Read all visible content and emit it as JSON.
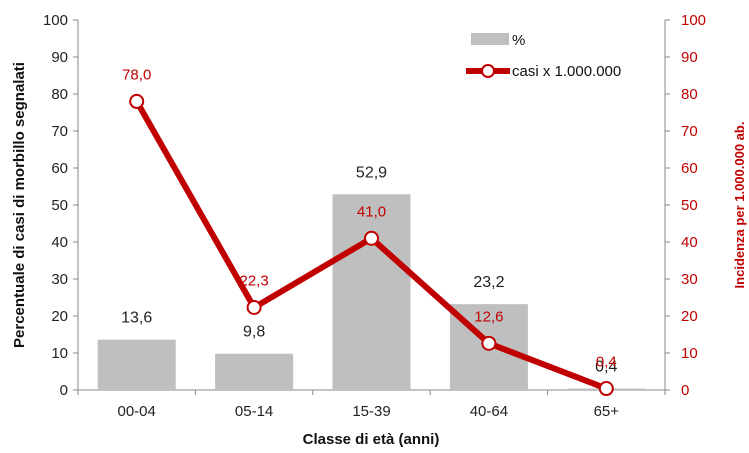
{
  "chart_data": {
    "type": "bar",
    "categories": [
      "00-04",
      "05-14",
      "15-39",
      "40-64",
      "65+"
    ],
    "series": [
      {
        "name": "%",
        "type": "bar",
        "axis": "left",
        "color": "#bfbfbf",
        "values": [
          13.6,
          9.8,
          52.9,
          23.2,
          0.4
        ],
        "labels": [
          "13,6",
          "9,8",
          "52,9",
          "23,2",
          "0,4"
        ]
      },
      {
        "name": "casi x 1.000.000",
        "type": "line",
        "axis": "right",
        "color": "#c00000",
        "values": [
          78.0,
          22.3,
          41.0,
          12.6,
          0.4
        ],
        "labels": [
          "78,0",
          "22,3",
          "41,0",
          "12,6",
          "0,4"
        ]
      }
    ],
    "xlabel": "Classe di età (anni)",
    "ylabel": "Percentuale di casi di morbillo segnalati",
    "y2label": "Incidenza per 1.000.000 ab.",
    "ylim": [
      0,
      100
    ],
    "y2lim": [
      0,
      100
    ],
    "yticks": [
      "0",
      "10",
      "20",
      "30",
      "40",
      "50",
      "60",
      "70",
      "80",
      "90",
      "100"
    ],
    "y2ticks": [
      "0",
      "10",
      "20",
      "30",
      "40",
      "50",
      "60",
      "70",
      "80",
      "90",
      "100"
    ],
    "grid": false,
    "legend_position": "top-right"
  }
}
